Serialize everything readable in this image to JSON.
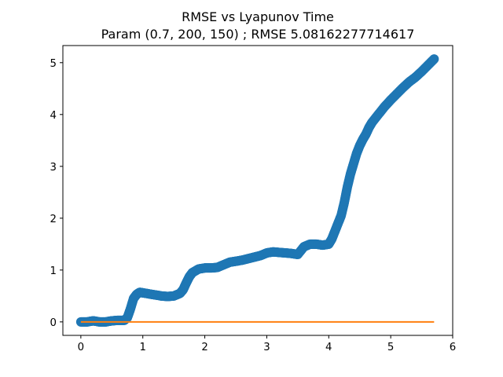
{
  "chart_data": {
    "type": "scatter",
    "title": "RMSE vs Lyapunov Time",
    "subtitle": "Param (0.7, 200, 150) ; RMSE 5.08162277714617",
    "xlabel": "",
    "ylabel": "",
    "xlim": [
      -0.29,
      6.0
    ],
    "ylim": [
      -0.26,
      5.33
    ],
    "xticks": [
      0,
      1,
      2,
      3,
      4,
      5,
      6
    ],
    "yticks": [
      0,
      1,
      2,
      3,
      4,
      5
    ],
    "grid": false,
    "legend": "none",
    "series": [
      {
        "kind": "scatter",
        "color": "#1f77b4",
        "x": [
          0.0,
          0.1,
          0.2,
          0.3,
          0.4,
          0.5,
          0.6,
          0.7,
          0.75,
          0.8,
          0.85,
          0.9,
          0.95,
          1.0,
          1.1,
          1.2,
          1.3,
          1.4,
          1.5,
          1.6,
          1.65,
          1.7,
          1.75,
          1.8,
          1.9,
          2.0,
          2.1,
          2.2,
          2.3,
          2.4,
          2.5,
          2.6,
          2.7,
          2.8,
          2.9,
          3.0,
          3.1,
          3.2,
          3.3,
          3.4,
          3.5,
          3.6,
          3.7,
          3.8,
          3.9,
          4.0,
          4.05,
          4.1,
          4.15,
          4.2,
          4.25,
          4.3,
          4.35,
          4.4,
          4.45,
          4.5,
          4.55,
          4.6,
          4.65,
          4.7,
          4.8,
          4.9,
          5.0,
          5.1,
          5.2,
          5.3,
          5.4,
          5.5,
          5.6,
          5.7
        ],
        "y": [
          0.0,
          0.0,
          0.02,
          0.0,
          0.0,
          0.02,
          0.03,
          0.03,
          0.08,
          0.25,
          0.45,
          0.53,
          0.57,
          0.56,
          0.54,
          0.52,
          0.5,
          0.49,
          0.5,
          0.55,
          0.62,
          0.75,
          0.87,
          0.95,
          1.02,
          1.04,
          1.04,
          1.05,
          1.1,
          1.15,
          1.17,
          1.19,
          1.22,
          1.25,
          1.28,
          1.33,
          1.35,
          1.34,
          1.33,
          1.32,
          1.3,
          1.45,
          1.5,
          1.5,
          1.48,
          1.5,
          1.6,
          1.75,
          1.9,
          2.05,
          2.3,
          2.6,
          2.85,
          3.05,
          3.25,
          3.4,
          3.52,
          3.62,
          3.75,
          3.85,
          4.0,
          4.15,
          4.28,
          4.4,
          4.52,
          4.63,
          4.72,
          4.83,
          4.95,
          5.07
        ]
      },
      {
        "kind": "line",
        "color": "#ff7f0e",
        "x": [
          0.0,
          5.7
        ],
        "y": [
          0.0,
          0.0
        ]
      }
    ]
  }
}
